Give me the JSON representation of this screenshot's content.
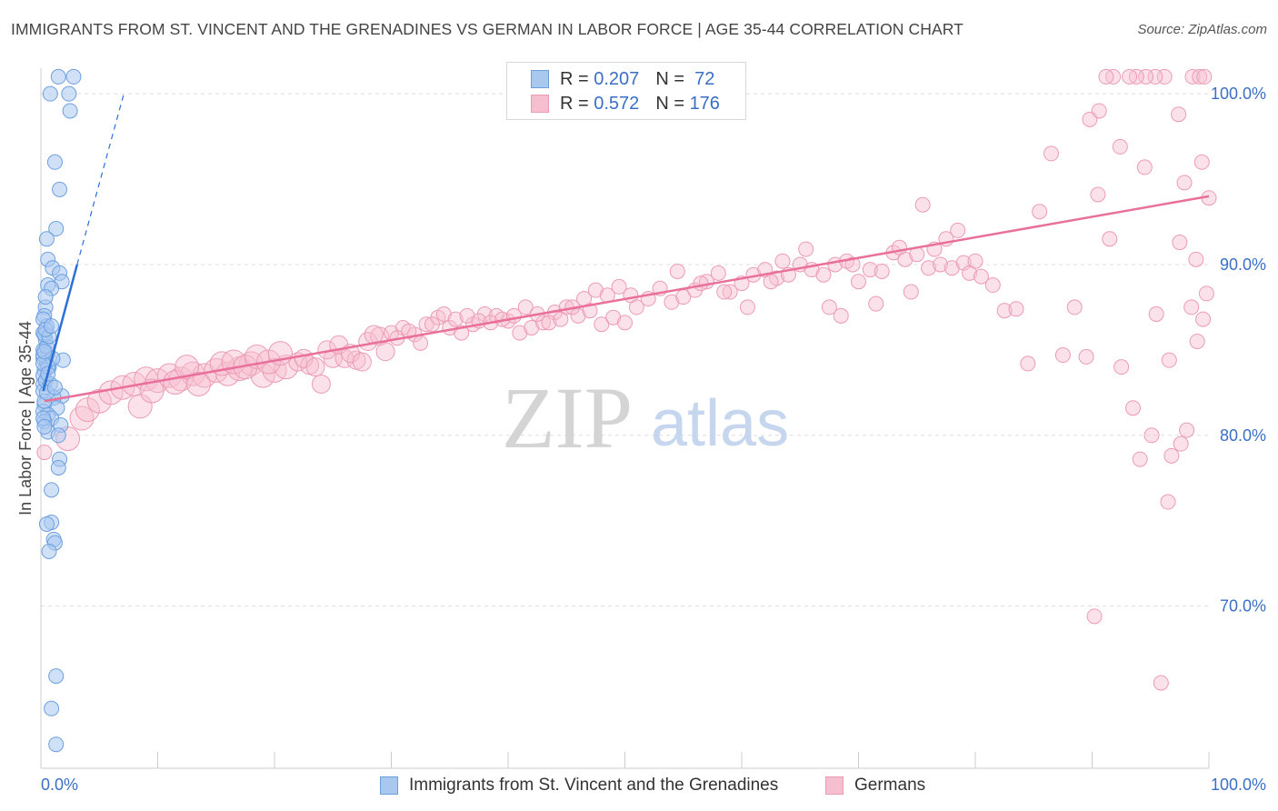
{
  "title": "IMMIGRANTS FROM ST. VINCENT AND THE GRENADINES VS GERMAN IN LABOR FORCE | AGE 35-44 CORRELATION CHART",
  "source": "Source: ZipAtlas.com",
  "watermark": {
    "zip": "ZIP",
    "atlas": "atlas"
  },
  "colors": {
    "blue_fill": "#a9c8f0",
    "blue_stroke": "#6d9fe0",
    "blue_line": "#2c6fd6",
    "pink_fill": "#f6bfd0",
    "pink_stroke": "#ec9bb5",
    "pink_line": "#e8709a",
    "grid": "#dddddd",
    "tick_text": "#3b6fc5"
  },
  "stats": [
    {
      "r_label": "R =",
      "r_value": "0.207",
      "n_label": "N =",
      "n_value": "72"
    },
    {
      "r_label": "R =",
      "r_value": "0.572",
      "n_label": "N =",
      "n_value": "176"
    }
  ],
  "chart_data": {
    "type": "scatter",
    "title": "IMMIGRANTS FROM ST. VINCENT AND THE GRENADINES VS GERMAN IN LABOR FORCE | AGE 35-44 CORRELATION CHART",
    "xlabel": "",
    "ylabel": "In Labor Force | Age 35-44",
    "xlim": [
      0,
      100
    ],
    "ylim": [
      60.5,
      101.5
    ],
    "x_tick_labels": [
      "0.0%",
      "100.0%"
    ],
    "y_ticks": [
      70,
      80,
      90,
      100
    ],
    "y_tick_labels": [
      "70.0%",
      "80.0%",
      "90.0%",
      "100.0%"
    ],
    "grid": true,
    "legend_position": "bottom",
    "series": [
      {
        "name": "Immigrants from St. Vincent and the Grenadines",
        "color": "#a9c8f0",
        "trend": {
          "x": [
            0.2,
            3.1
          ],
          "y": [
            82.6,
            90.0
          ],
          "dashed_to": {
            "x": 7.1,
            "y": 100.0
          }
        },
        "points": [
          [
            0.8,
            100.0
          ],
          [
            1.5,
            101.0
          ],
          [
            2.8,
            101.0
          ],
          [
            2.4,
            100.0
          ],
          [
            2.5,
            99.0
          ],
          [
            1.2,
            96.0
          ],
          [
            1.6,
            94.4
          ],
          [
            1.3,
            92.1
          ],
          [
            0.5,
            91.5
          ],
          [
            0.6,
            90.3
          ],
          [
            1.0,
            89.8
          ],
          [
            1.6,
            89.5
          ],
          [
            1.8,
            89.0
          ],
          [
            0.6,
            88.8
          ],
          [
            0.9,
            88.6
          ],
          [
            0.4,
            87.5
          ],
          [
            0.3,
            87.0
          ],
          [
            0.5,
            86.4
          ],
          [
            0.2,
            86.0
          ],
          [
            0.4,
            85.6
          ],
          [
            0.2,
            85.0
          ],
          [
            0.6,
            84.8
          ],
          [
            0.2,
            84.5
          ],
          [
            1.9,
            84.4
          ],
          [
            0.5,
            84.3
          ],
          [
            0.7,
            84.0
          ],
          [
            0.3,
            83.8
          ],
          [
            0.2,
            83.5
          ],
          [
            0.2,
            83.0
          ],
          [
            0.2,
            82.6
          ],
          [
            1.8,
            82.3
          ],
          [
            1.1,
            82.2
          ],
          [
            0.3,
            81.8
          ],
          [
            1.4,
            81.6
          ],
          [
            0.2,
            81.4
          ],
          [
            0.6,
            81.2
          ],
          [
            0.9,
            81.0
          ],
          [
            0.3,
            80.8
          ],
          [
            1.7,
            80.6
          ],
          [
            0.6,
            80.2
          ],
          [
            1.5,
            80.0
          ],
          [
            1.6,
            78.6
          ],
          [
            1.5,
            78.1
          ],
          [
            0.9,
            76.8
          ],
          [
            0.9,
            74.9
          ],
          [
            0.5,
            74.8
          ],
          [
            1.1,
            73.9
          ],
          [
            1.2,
            73.7
          ],
          [
            0.7,
            73.2
          ],
          [
            1.3,
            65.9
          ],
          [
            0.9,
            64.0
          ],
          [
            1.3,
            61.9
          ],
          [
            0.2,
            84.7
          ],
          [
            0.4,
            83.2
          ],
          [
            0.3,
            82.0
          ],
          [
            0.5,
            85.2
          ],
          [
            0.2,
            86.8
          ],
          [
            0.4,
            88.1
          ],
          [
            0.6,
            84.0
          ],
          [
            0.3,
            85.9
          ],
          [
            0.8,
            83.0
          ],
          [
            0.2,
            81.0
          ],
          [
            1.0,
            84.5
          ],
          [
            0.3,
            80.5
          ],
          [
            0.5,
            82.5
          ],
          [
            0.7,
            85.8
          ],
          [
            0.2,
            84.2
          ],
          [
            0.4,
            86.2
          ],
          [
            0.6,
            83.6
          ],
          [
            0.3,
            84.9
          ],
          [
            0.9,
            86.4
          ],
          [
            1.2,
            82.8
          ]
        ]
      },
      {
        "name": "Germans",
        "color": "#f6bfd0",
        "trend": {
          "x": [
            0.3,
            100.0
          ],
          "y": [
            82.0,
            94.0
          ]
        },
        "points": [
          [
            0.3,
            79.0
          ],
          [
            2.3,
            79.8
          ],
          [
            3.5,
            81.0
          ],
          [
            4.0,
            81.5
          ],
          [
            5.0,
            82.0
          ],
          [
            6.0,
            82.5
          ],
          [
            7.0,
            82.8
          ],
          [
            8.0,
            83.0
          ],
          [
            9.0,
            83.3
          ],
          [
            10.0,
            83.2
          ],
          [
            11.0,
            83.5
          ],
          [
            12.0,
            83.3
          ],
          [
            13.0,
            83.6
          ],
          [
            14.0,
            83.5
          ],
          [
            15.0,
            83.8
          ],
          [
            16.0,
            83.6
          ],
          [
            17.0,
            83.9
          ],
          [
            18.0,
            84.2
          ],
          [
            19.0,
            83.5
          ],
          [
            20.0,
            83.8
          ],
          [
            21.0,
            84.0
          ],
          [
            22.0,
            84.3
          ],
          [
            23.0,
            84.1
          ],
          [
            24.0,
            83.0
          ],
          [
            25.0,
            84.5
          ],
          [
            26.0,
            84.5
          ],
          [
            27.0,
            84.4
          ],
          [
            28.0,
            85.5
          ],
          [
            29.0,
            85.8
          ],
          [
            30.0,
            86.0
          ],
          [
            31.0,
            86.3
          ],
          [
            32.0,
            85.9
          ],
          [
            33.0,
            86.5
          ],
          [
            34.0,
            86.9
          ],
          [
            35.0,
            86.3
          ],
          [
            36.0,
            86.0
          ],
          [
            37.0,
            86.5
          ],
          [
            38.0,
            87.1
          ],
          [
            39.0,
            87.0
          ],
          [
            40.0,
            86.7
          ],
          [
            41.0,
            86.0
          ],
          [
            42.0,
            86.3
          ],
          [
            43.0,
            86.6
          ],
          [
            44.0,
            87.2
          ],
          [
            45.0,
            87.5
          ],
          [
            46.0,
            87.0
          ],
          [
            47.0,
            87.3
          ],
          [
            48.0,
            86.5
          ],
          [
            49.0,
            86.9
          ],
          [
            50.0,
            86.6
          ],
          [
            8.5,
            81.7
          ],
          [
            9.5,
            82.6
          ],
          [
            11.5,
            83.1
          ],
          [
            12.5,
            84.0
          ],
          [
            13.5,
            83.0
          ],
          [
            15.5,
            84.2
          ],
          [
            16.5,
            84.3
          ],
          [
            17.5,
            84.0
          ],
          [
            18.5,
            84.6
          ],
          [
            19.5,
            84.3
          ],
          [
            20.5,
            84.8
          ],
          [
            22.5,
            84.5
          ],
          [
            23.5,
            84.0
          ],
          [
            24.5,
            85.0
          ],
          [
            25.5,
            85.3
          ],
          [
            26.5,
            84.8
          ],
          [
            27.5,
            84.3
          ],
          [
            28.5,
            85.9
          ],
          [
            29.5,
            84.9
          ],
          [
            30.5,
            85.7
          ],
          [
            31.5,
            86.1
          ],
          [
            32.5,
            85.4
          ],
          [
            33.5,
            86.5
          ],
          [
            34.5,
            87.1
          ],
          [
            35.5,
            86.8
          ],
          [
            36.5,
            87.0
          ],
          [
            37.5,
            86.7
          ],
          [
            38.5,
            86.6
          ],
          [
            39.5,
            86.8
          ],
          [
            40.5,
            87.0
          ],
          [
            41.5,
            87.5
          ],
          [
            42.5,
            87.1
          ],
          [
            43.5,
            86.6
          ],
          [
            44.5,
            86.8
          ],
          [
            45.5,
            87.5
          ],
          [
            46.5,
            88.0
          ],
          [
            47.5,
            88.5
          ],
          [
            48.5,
            88.2
          ],
          [
            49.5,
            88.7
          ],
          [
            50.5,
            88.2
          ],
          [
            51.0,
            87.5
          ],
          [
            52.0,
            88.0
          ],
          [
            53.0,
            88.6
          ],
          [
            54.0,
            87.8
          ],
          [
            55.0,
            88.1
          ],
          [
            56.0,
            88.5
          ],
          [
            57.0,
            89.0
          ],
          [
            58.0,
            89.5
          ],
          [
            59.0,
            88.4
          ],
          [
            60.0,
            88.9
          ],
          [
            61.0,
            89.4
          ],
          [
            62.0,
            89.7
          ],
          [
            63.0,
            89.2
          ],
          [
            64.0,
            89.4
          ],
          [
            65.0,
            90.0
          ],
          [
            66.0,
            89.7
          ],
          [
            67.0,
            89.4
          ],
          [
            68.0,
            90.0
          ],
          [
            69.0,
            90.2
          ],
          [
            70.0,
            89.0
          ],
          [
            71.0,
            89.7
          ],
          [
            72.0,
            89.6
          ],
          [
            73.0,
            90.7
          ],
          [
            74.0,
            90.3
          ],
          [
            75.0,
            90.6
          ],
          [
            76.0,
            89.8
          ],
          [
            77.0,
            90.0
          ],
          [
            78.0,
            89.8
          ],
          [
            79.0,
            90.1
          ],
          [
            80.0,
            90.2
          ],
          [
            54.5,
            89.6
          ],
          [
            56.5,
            88.9
          ],
          [
            58.5,
            88.4
          ],
          [
            60.5,
            87.5
          ],
          [
            62.5,
            89.0
          ],
          [
            63.5,
            90.2
          ],
          [
            65.5,
            90.9
          ],
          [
            67.5,
            87.5
          ],
          [
            68.5,
            87.0
          ],
          [
            69.5,
            90.0
          ],
          [
            71.5,
            87.7
          ],
          [
            73.5,
            91.0
          ],
          [
            74.5,
            88.4
          ],
          [
            75.5,
            93.5
          ],
          [
            76.5,
            90.9
          ],
          [
            77.5,
            91.5
          ],
          [
            78.5,
            92.0
          ],
          [
            79.5,
            89.5
          ],
          [
            80.5,
            89.3
          ],
          [
            81.5,
            88.8
          ],
          [
            82.5,
            87.3
          ],
          [
            83.5,
            87.4
          ],
          [
            84.5,
            84.2
          ],
          [
            85.5,
            93.1
          ],
          [
            86.5,
            96.5
          ],
          [
            87.5,
            84.7
          ],
          [
            88.5,
            87.5
          ],
          [
            89.5,
            84.6
          ],
          [
            90.5,
            94.1
          ],
          [
            91.5,
            91.5
          ],
          [
            92.5,
            84.0
          ],
          [
            93.5,
            81.6
          ],
          [
            94.5,
            95.7
          ],
          [
            95.5,
            87.1
          ],
          [
            96.5,
            76.1
          ],
          [
            97.5,
            91.3
          ],
          [
            98.5,
            87.5
          ],
          [
            99.5,
            86.8
          ],
          [
            100.0,
            93.9
          ],
          [
            90.2,
            69.4
          ],
          [
            95.1,
            80.0
          ],
          [
            96.8,
            78.8
          ],
          [
            97.6,
            79.5
          ],
          [
            98.1,
            80.3
          ],
          [
            99.0,
            85.5
          ],
          [
            99.8,
            88.3
          ],
          [
            98.6,
            101.0
          ],
          [
            99.2,
            101.0
          ],
          [
            99.6,
            101.0
          ],
          [
            97.4,
            98.8
          ],
          [
            96.2,
            101.0
          ],
          [
            95.4,
            101.0
          ],
          [
            94.6,
            101.0
          ],
          [
            93.8,
            101.0
          ],
          [
            93.2,
            101.0
          ],
          [
            92.4,
            96.9
          ],
          [
            91.8,
            101.0
          ],
          [
            91.2,
            101.0
          ],
          [
            90.6,
            99.0
          ],
          [
            89.8,
            98.5
          ],
          [
            95.9,
            65.5
          ],
          [
            94.1,
            78.6
          ],
          [
            96.6,
            84.4
          ],
          [
            97.9,
            94.8
          ],
          [
            98.9,
            90.3
          ],
          [
            99.4,
            96.0
          ]
        ]
      }
    ]
  }
}
